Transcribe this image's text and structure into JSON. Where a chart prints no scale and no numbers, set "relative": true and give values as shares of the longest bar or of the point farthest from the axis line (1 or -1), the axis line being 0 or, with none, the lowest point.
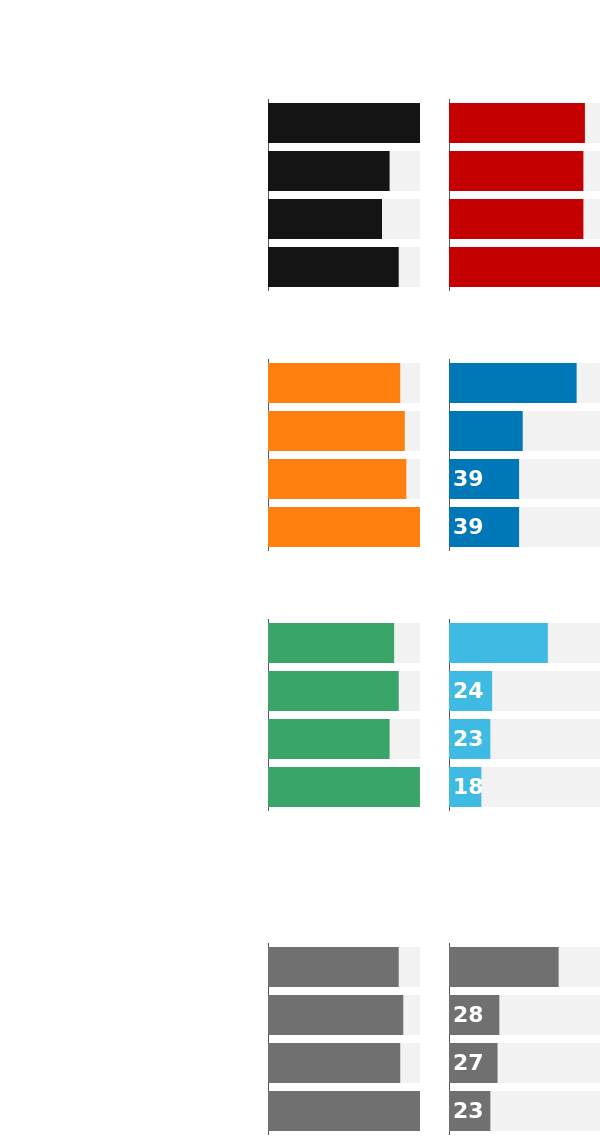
{
  "chart_data": [
    {
      "type": "bar",
      "orientation": "horizontal",
      "relative": true,
      "categories": [
        null,
        null,
        null,
        null
      ],
      "values": [
        1,
        0.8,
        0.75,
        0.86
      ],
      "color": "#141414"
    },
    {
      "type": "bar",
      "orientation": "horizontal",
      "relative": true,
      "categories": [
        null,
        null,
        null,
        null
      ],
      "values": [
        0.9,
        0.89,
        0.89,
        1
      ],
      "color": "#c40000"
    },
    {
      "type": "bar",
      "orientation": "horizontal",
      "relative": true,
      "categories": [
        null,
        null,
        null,
        null
      ],
      "values": [
        0.87,
        0.9,
        0.91,
        1
      ],
      "color": "#ff7f0f"
    },
    {
      "type": "bar",
      "orientation": "horizontal",
      "categories": [
        null,
        null,
        null,
        null
      ],
      "values": [
        71,
        41,
        39,
        39
      ],
      "value_labels": [
        null,
        null,
        "39",
        "39"
      ],
      "color": "#0077b6",
      "xlim": [
        0,
        84
      ],
      "tick_labels": false
    },
    {
      "type": "bar",
      "orientation": "horizontal",
      "relative": true,
      "categories": [
        null,
        null,
        null,
        null
      ],
      "values": [
        0.83,
        0.86,
        0.8,
        1
      ],
      "color": "#3aa568"
    },
    {
      "type": "bar",
      "orientation": "horizontal",
      "categories": [
        null,
        null,
        null,
        null
      ],
      "values": [
        55,
        24,
        23,
        18
      ],
      "value_labels": [
        null,
        "24",
        "23",
        "18"
      ],
      "color": "#3ebae3",
      "xlim": [
        0,
        84
      ],
      "tick_labels": false
    },
    {
      "type": "bar",
      "orientation": "horizontal",
      "relative": true,
      "categories": [
        null,
        null,
        null,
        null
      ],
      "values": [
        0.86,
        0.89,
        0.87,
        1
      ],
      "color": "#707070"
    },
    {
      "type": "bar",
      "orientation": "horizontal",
      "categories": [
        null,
        null,
        null,
        null
      ],
      "values": [
        61,
        28,
        27,
        23
      ],
      "value_labels": [
        null,
        "28",
        "27",
        "23"
      ],
      "color": "#707070",
      "xlim": [
        0,
        84
      ],
      "tick_labels": false
    }
  ]
}
